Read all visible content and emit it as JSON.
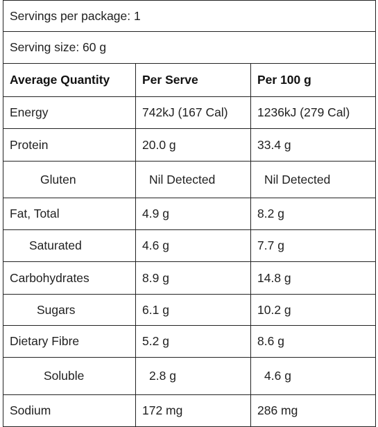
{
  "servings_per_package": "Servings per package: 1",
  "serving_size": "Serving size: 60 g",
  "headers": [
    "Average Quantity",
    "Per Serve",
    "Per 100 g"
  ],
  "rows": [
    {
      "nutrient": "Energy",
      "per_serve": "742kJ (167 Cal)",
      "per_100g": "1236kJ (279 Cal)"
    },
    {
      "nutrient": "Protein",
      "per_serve": "20.0 g",
      "per_100g": "33.4 g"
    },
    {
      "nutrient": "Gluten",
      "per_serve": "Nil Detected",
      "per_100g": "Nil Detected"
    },
    {
      "nutrient": "Fat, Total",
      "per_serve": "4.9 g",
      "per_100g": "8.2 g"
    },
    {
      "nutrient": "Saturated",
      "per_serve": "4.6 g",
      "per_100g": "7.7 g"
    },
    {
      "nutrient": "Carbohydrates",
      "per_serve": "8.9 g",
      "per_100g": "14.8 g"
    },
    {
      "nutrient": "Sugars",
      "per_serve": "6.1 g",
      "per_100g": "10.2 g"
    },
    {
      "nutrient": "Dietary Fibre",
      "per_serve": "5.2 g",
      "per_100g": "8.6 g"
    },
    {
      "nutrient": "Soluble",
      "per_serve": "2.8 g",
      "per_100g": "4.6 g"
    },
    {
      "nutrient": "Sodium",
      "per_serve": "172 mg",
      "per_100g": "286 mg"
    }
  ]
}
